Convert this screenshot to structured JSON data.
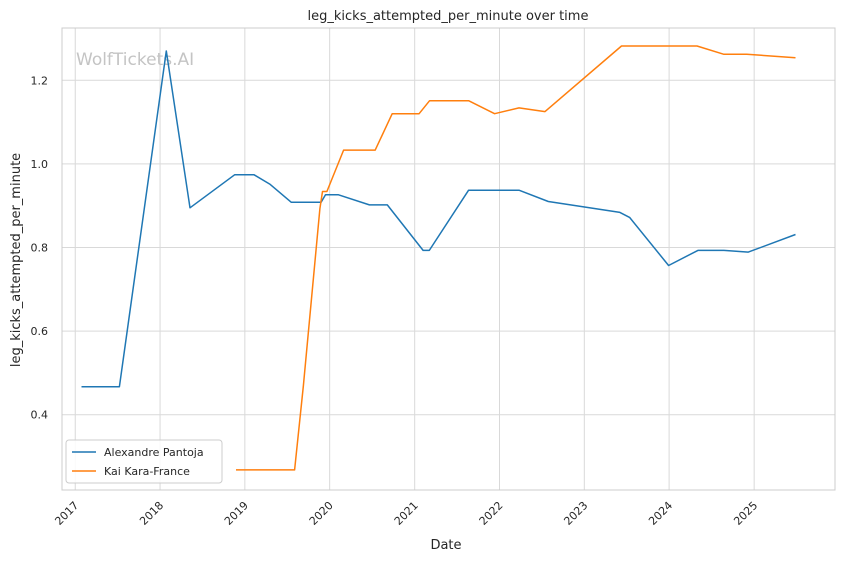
{
  "chart_data": {
    "type": "line",
    "title": "leg_kicks_attempted_per_minute over time",
    "xlabel": "Date",
    "ylabel": "leg_kicks_attempted_per_minute",
    "watermark": "WolfTickets.AI",
    "xlim": [
      "2016-11-05",
      "2025-12-15"
    ],
    "ylim": [
      0.22,
      1.325
    ],
    "x_ticks": [
      "2017",
      "2018",
      "2019",
      "2020",
      "2021",
      "2022",
      "2023",
      "2024",
      "2025"
    ],
    "y_ticks": [
      "0.4",
      "0.6",
      "0.8",
      "1.0",
      "1.2"
    ],
    "grid": true,
    "legend_position": "lower-left",
    "series": [
      {
        "name": "Alexandre Pantoja",
        "color": "#1f77b4",
        "points": [
          [
            "2017-01-28",
            0.467
          ],
          [
            "2017-07-10",
            0.467
          ],
          [
            "2018-01-28",
            1.27
          ],
          [
            "2018-05-10",
            0.895
          ],
          [
            "2018-11-18",
            0.974
          ],
          [
            "2019-02-10",
            0.974
          ],
          [
            "2019-04-20",
            0.951
          ],
          [
            "2019-07-20",
            0.908
          ],
          [
            "2019-11-25",
            0.908
          ],
          [
            "2019-12-14",
            0.926
          ],
          [
            "2020-02-08",
            0.926
          ],
          [
            "2020-06-20",
            0.902
          ],
          [
            "2020-09-05",
            0.902
          ],
          [
            "2021-02-06",
            0.793
          ],
          [
            "2021-03-05",
            0.793
          ],
          [
            "2021-08-21",
            0.937
          ],
          [
            "2022-03-26",
            0.937
          ],
          [
            "2022-07-30",
            0.91
          ],
          [
            "2023-06-03",
            0.884
          ],
          [
            "2023-07-15",
            0.872
          ],
          [
            "2023-12-30",
            0.757
          ],
          [
            "2024-05-04",
            0.793
          ],
          [
            "2024-08-24",
            0.793
          ],
          [
            "2024-12-07",
            0.789
          ],
          [
            "2025-06-28",
            0.831
          ]
        ]
      },
      {
        "name": "Kai Kara-France",
        "color": "#ff7f0e",
        "points": [
          [
            "2018-11-24",
            0.268
          ],
          [
            "2019-08-03",
            0.268
          ],
          [
            "2019-09-10",
            0.47
          ],
          [
            "2019-11-20",
            0.893
          ],
          [
            "2019-12-01",
            0.934
          ],
          [
            "2019-12-20",
            0.934
          ],
          [
            "2020-03-01",
            1.033
          ],
          [
            "2020-07-15",
            1.033
          ],
          [
            "2020-09-26",
            1.12
          ],
          [
            "2021-01-20",
            1.12
          ],
          [
            "2021-03-06",
            1.151
          ],
          [
            "2021-08-21",
            1.151
          ],
          [
            "2021-12-11",
            1.12
          ],
          [
            "2022-03-26",
            1.134
          ],
          [
            "2022-07-16",
            1.125
          ],
          [
            "2023-06-10",
            1.282
          ],
          [
            "2024-04-30",
            1.282
          ],
          [
            "2024-08-24",
            1.262
          ],
          [
            "2024-11-30",
            1.262
          ],
          [
            "2025-06-28",
            1.254
          ]
        ]
      }
    ]
  }
}
